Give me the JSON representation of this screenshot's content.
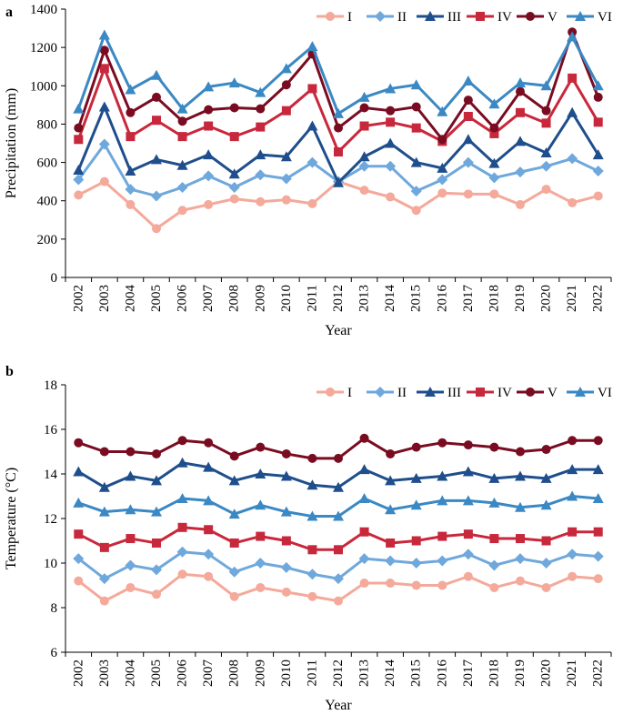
{
  "chart_data": [
    {
      "panel": "a",
      "type": "line",
      "xlabel": "Year",
      "ylabel": "Precipitation (mm)",
      "ylim": [
        0,
        1400
      ],
      "yticks": [
        "0",
        "200",
        "400",
        "600",
        "800",
        "1000",
        "1200",
        "1400"
      ],
      "x": [
        "2002",
        "2003",
        "2004",
        "2005",
        "2006",
        "2007",
        "2008",
        "2009",
        "2010",
        "2011",
        "2012",
        "2013",
        "2014",
        "2015",
        "2016",
        "2017",
        "2018",
        "2019",
        "2020",
        "2021",
        "2022"
      ],
      "legend_position": "top-right",
      "series": [
        {
          "name": "I",
          "color": "#f4a99b",
          "marker": "circle",
          "values": [
            430,
            500,
            380,
            255,
            350,
            380,
            410,
            395,
            405,
            385,
            500,
            455,
            420,
            350,
            440,
            435,
            435,
            380,
            460,
            390,
            425
          ]
        },
        {
          "name": "II",
          "color": "#6fa8dc",
          "marker": "diamond",
          "values": [
            510,
            695,
            460,
            425,
            470,
            530,
            470,
            535,
            515,
            600,
            500,
            580,
            580,
            450,
            510,
            600,
            520,
            550,
            580,
            620,
            555
          ]
        },
        {
          "name": "III",
          "color": "#1f4e8c",
          "marker": "triangle",
          "values": [
            560,
            890,
            555,
            615,
            585,
            640,
            540,
            640,
            630,
            790,
            495,
            630,
            700,
            600,
            570,
            720,
            595,
            710,
            650,
            860,
            640
          ]
        },
        {
          "name": "IV",
          "color": "#c8283c",
          "marker": "square",
          "values": [
            720,
            1090,
            735,
            820,
            735,
            790,
            735,
            785,
            870,
            985,
            655,
            790,
            810,
            780,
            710,
            840,
            750,
            860,
            805,
            1040,
            810
          ]
        },
        {
          "name": "V",
          "color": "#7a0c22",
          "marker": "circle",
          "values": [
            780,
            1185,
            860,
            940,
            815,
            875,
            885,
            880,
            1005,
            1165,
            780,
            885,
            870,
            890,
            720,
            925,
            780,
            970,
            870,
            1280,
            940
          ]
        },
        {
          "name": "VI",
          "color": "#3a88c4",
          "marker": "triangle",
          "values": [
            880,
            1265,
            980,
            1055,
            880,
            995,
            1015,
            965,
            1090,
            1205,
            855,
            940,
            985,
            1005,
            865,
            1025,
            905,
            1015,
            1000,
            1255,
            1000
          ]
        }
      ]
    },
    {
      "panel": "b",
      "type": "line",
      "xlabel": "Year",
      "ylabel": "Temperature (°C)",
      "ylim": [
        6,
        18
      ],
      "yticks": [
        "6",
        "8",
        "10",
        "12",
        "14",
        "16",
        "18"
      ],
      "x": [
        "2002",
        "2003",
        "2004",
        "2005",
        "2006",
        "2007",
        "2008",
        "2009",
        "2010",
        "2011",
        "2012",
        "2013",
        "2014",
        "2015",
        "2016",
        "2017",
        "2018",
        "2019",
        "2020",
        "2021",
        "2022"
      ],
      "legend_position": "top-right",
      "series": [
        {
          "name": "I",
          "color": "#f4a99b",
          "marker": "circle",
          "values": [
            9.2,
            8.3,
            8.9,
            8.6,
            9.5,
            9.4,
            8.5,
            8.9,
            8.7,
            8.5,
            8.3,
            9.1,
            9.1,
            9.0,
            9.0,
            9.4,
            8.9,
            9.2,
            8.9,
            9.4,
            9.3
          ]
        },
        {
          "name": "II",
          "color": "#6fa8dc",
          "marker": "diamond",
          "values": [
            10.2,
            9.3,
            9.9,
            9.7,
            10.5,
            10.4,
            9.6,
            10.0,
            9.8,
            9.5,
            9.3,
            10.2,
            10.1,
            10.0,
            10.1,
            10.4,
            9.9,
            10.2,
            10.0,
            10.4,
            10.3
          ]
        },
        {
          "name": "III",
          "color": "#1f4e8c",
          "marker": "triangle",
          "values": [
            14.1,
            13.4,
            13.9,
            13.7,
            14.5,
            14.3,
            13.7,
            14.0,
            13.9,
            13.5,
            13.4,
            14.2,
            13.7,
            13.8,
            13.9,
            14.1,
            13.8,
            13.9,
            13.8,
            14.2,
            14.2
          ]
        },
        {
          "name": "IV",
          "color": "#c8283c",
          "marker": "square",
          "values": [
            11.3,
            10.7,
            11.1,
            10.9,
            11.6,
            11.5,
            10.9,
            11.2,
            11.0,
            10.6,
            10.6,
            11.4,
            10.9,
            11.0,
            11.2,
            11.3,
            11.1,
            11.1,
            11.0,
            11.4,
            11.4
          ]
        },
        {
          "name": "V",
          "color": "#7a0c22",
          "marker": "circle",
          "values": [
            15.4,
            15.0,
            15.0,
            14.9,
            15.5,
            15.4,
            14.8,
            15.2,
            14.9,
            14.7,
            14.7,
            15.6,
            14.9,
            15.2,
            15.4,
            15.3,
            15.2,
            15.0,
            15.1,
            15.5,
            15.5
          ]
        },
        {
          "name": "VI",
          "color": "#3a88c4",
          "marker": "triangle",
          "values": [
            12.7,
            12.3,
            12.4,
            12.3,
            12.9,
            12.8,
            12.2,
            12.6,
            12.3,
            12.1,
            12.1,
            12.9,
            12.4,
            12.6,
            12.8,
            12.8,
            12.7,
            12.5,
            12.6,
            13.0,
            12.9
          ]
        }
      ]
    }
  ]
}
